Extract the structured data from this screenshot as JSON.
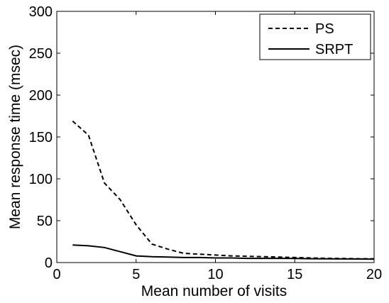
{
  "chart_data": {
    "type": "line",
    "xlabel": "Mean number of visits",
    "ylabel": "Mean response time (msec)",
    "xlim": [
      0,
      20
    ],
    "ylim": [
      0,
      300
    ],
    "x_ticks": [
      "0",
      "5",
      "10",
      "15",
      "20"
    ],
    "y_ticks": [
      "0",
      "50",
      "100",
      "150",
      "200",
      "250",
      "300"
    ],
    "grid": false,
    "legend_position": "top-right",
    "series": [
      {
        "name": "PS",
        "line_style": "dashed",
        "color": "#000000",
        "points": [
          [
            1,
            169
          ],
          [
            2,
            152
          ],
          [
            3,
            95
          ],
          [
            4,
            75
          ],
          [
            5,
            45
          ],
          [
            6,
            22
          ],
          [
            7,
            16
          ],
          [
            8,
            11
          ],
          [
            9,
            10
          ],
          [
            10,
            9
          ],
          [
            11,
            8
          ],
          [
            12,
            7.5
          ],
          [
            13,
            7
          ],
          [
            14,
            6.5
          ],
          [
            15,
            6
          ],
          [
            16,
            5.5
          ],
          [
            17,
            5
          ],
          [
            18,
            4.8
          ],
          [
            19,
            4.6
          ],
          [
            20,
            4.5
          ]
        ]
      },
      {
        "name": "SRPT",
        "line_style": "solid",
        "color": "#000000",
        "points": [
          [
            1,
            21
          ],
          [
            2,
            20
          ],
          [
            3,
            18
          ],
          [
            4,
            13
          ],
          [
            5,
            8
          ],
          [
            6,
            7
          ],
          [
            7,
            6.5
          ],
          [
            8,
            6
          ],
          [
            9,
            6
          ],
          [
            10,
            5.5
          ],
          [
            11,
            5.5
          ],
          [
            12,
            5
          ],
          [
            13,
            5
          ],
          [
            14,
            5
          ],
          [
            15,
            4.8
          ],
          [
            16,
            4.6
          ],
          [
            17,
            4.5
          ],
          [
            18,
            4.3
          ],
          [
            19,
            4.2
          ],
          [
            20,
            4.1
          ]
        ]
      }
    ]
  }
}
